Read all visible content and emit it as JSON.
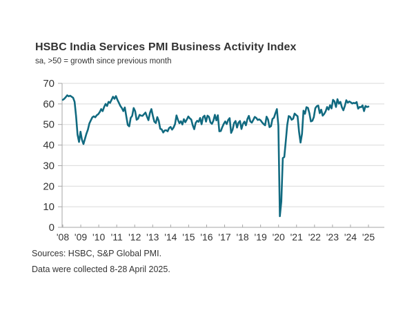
{
  "header": {
    "title": "HSBC India Services PMI Business Activity Index",
    "subtitle": "sa, >50 = growth since previous month"
  },
  "footer": {
    "sources": "Sources: HSBC, S&P Global PMI.",
    "note": "Data were collected 8-28 April 2025."
  },
  "chart_data": {
    "type": "line",
    "title": "HSBC India Services PMI Business Activity Index",
    "subtitle": "sa, >50 = growth since previous month",
    "xlabel": "",
    "ylabel": "",
    "ylim": [
      0,
      70
    ],
    "yticks": [
      0,
      10,
      20,
      30,
      40,
      50,
      60,
      70
    ],
    "x_tick_labels": [
      "'08",
      "'09",
      "'10",
      "'11",
      "'12",
      "'13",
      "'14",
      "'15",
      "'16",
      "'17",
      "'18",
      "'19",
      "'20",
      "'21",
      "'22",
      "'23",
      "'24",
      "'25"
    ],
    "x_start": "2008-01",
    "x_end": "2025-04",
    "frequency": "monthly",
    "grid": "horizontal",
    "legend": "none",
    "line_color": "#116a80",
    "gridline_color": "#d9d9d9",
    "axis_color": "#a6a6a6",
    "tick_label_color": "#333333",
    "reference_level_note": ">50 = growth since previous month",
    "series": [
      {
        "name": "Services PMI Business Activity Index",
        "values": [
          62.0,
          62.5,
          63.3,
          64.2,
          63.7,
          64.0,
          63.5,
          63.0,
          61.0,
          54.0,
          45.0,
          41.5,
          46.5,
          42.5,
          40.5,
          43.0,
          45.5,
          47.5,
          50.5,
          52.0,
          53.5,
          54.0,
          53.5,
          54.5,
          55.0,
          56.0,
          57.5,
          56.5,
          58.5,
          60.0,
          59.0,
          61.0,
          60.5,
          62.0,
          63.5,
          62.5,
          63.8,
          62.0,
          60.5,
          59.0,
          58.0,
          56.5,
          58.3,
          54.0,
          49.8,
          49.1,
          53.2,
          54.2,
          58.0,
          56.5,
          52.3,
          52.8,
          54.7,
          54.3,
          54.2,
          55.0,
          55.8,
          53.8,
          52.1,
          55.6,
          57.5,
          54.2,
          51.4,
          50.7,
          53.6,
          51.7,
          47.9,
          47.6,
          46.1,
          47.1,
          47.2,
          46.7,
          48.3,
          48.8,
          47.5,
          48.5,
          50.2,
          54.4,
          52.2,
          50.6,
          51.6,
          50.0,
          52.6,
          51.1,
          52.4,
          53.9,
          53.0,
          52.4,
          49.6,
          47.7,
          50.8,
          51.8,
          51.3,
          53.2,
          50.1,
          53.6,
          54.3,
          51.4,
          54.3,
          53.7,
          51.0,
          50.3,
          51.9,
          54.7,
          52.0,
          54.5,
          46.7,
          46.8,
          48.7,
          50.3,
          51.5,
          50.2,
          52.2,
          53.1,
          45.9,
          47.5,
          50.7,
          51.7,
          48.5,
          50.9,
          51.7,
          47.8,
          50.3,
          51.4,
          49.6,
          52.6,
          54.2,
          51.5,
          50.9,
          52.2,
          53.7,
          53.2,
          52.2,
          52.5,
          52.0,
          51.0,
          50.2,
          49.6,
          53.8,
          52.4,
          48.7,
          49.2,
          52.7,
          53.3,
          55.5,
          57.5,
          49.3,
          5.4,
          12.6,
          33.7,
          34.2,
          41.8,
          49.8,
          54.1,
          53.7,
          52.3,
          52.8,
          55.3,
          54.6,
          54.0,
          46.4,
          41.2,
          45.4,
          56.7,
          55.2,
          58.4,
          58.1,
          55.5,
          51.5,
          51.8,
          53.6,
          57.9,
          58.9,
          59.2,
          55.5,
          57.2,
          54.3,
          55.1,
          56.4,
          58.5,
          57.2,
          59.4,
          57.8,
          62.0,
          61.2,
          58.5,
          62.3,
          60.1,
          61.0,
          58.4,
          56.9,
          59.0,
          61.8,
          60.6,
          61.2,
          60.8,
          60.2,
          60.5,
          60.3,
          60.9,
          57.7,
          58.5,
          58.4,
          59.3,
          56.5,
          59.0,
          58.5,
          58.7
        ]
      }
    ]
  }
}
